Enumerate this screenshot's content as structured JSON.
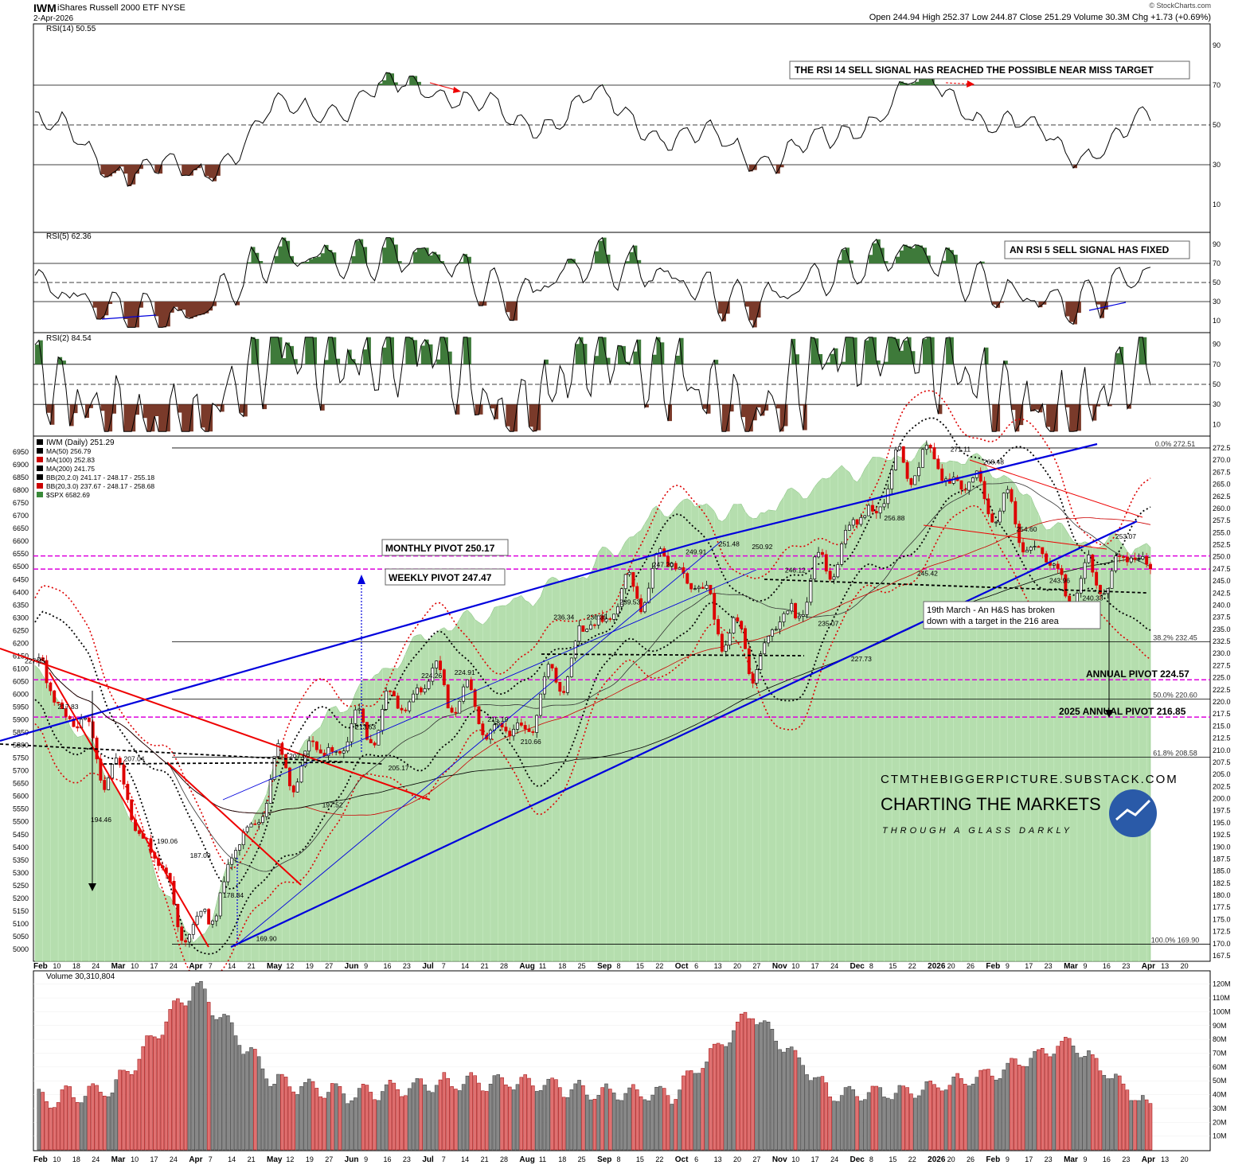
{
  "header": {
    "symbol": "IWM",
    "name": "iShares Russell 2000 ETF",
    "exchange": "NYSE",
    "date": "2-Apr-2026",
    "quote": "Open 244.94  High 252.37  Low 244.87  Close 251.29  Volume 30.3M  Chg +1.73 (+0.69%)",
    "credit": "© StockCharts.com"
  },
  "colors": {
    "up": "#000000",
    "down": "#dd0000",
    "overbought": "#3e7a3a",
    "oversold": "#7a3a2a",
    "spx_fill": "#a8d8a0",
    "pivot": "#dd00dd",
    "trend": "#0000dd",
    "red_trend": "#ee0000",
    "vol_up": "#888888",
    "vol_down": "#e07070"
  },
  "panels": {
    "rsi14": {
      "title": "RSI(14) 50.55",
      "ticks": [
        "90",
        "70",
        "50",
        "30",
        "10"
      ],
      "note": "THE RSI 14 SELL SIGNAL HAS REACHED THE POSSIBLE NEAR MISS TARGET"
    },
    "rsi5": {
      "title": "RSI(5) 62.36",
      "ticks": [
        "90",
        "70",
        "50",
        "30",
        "10"
      ],
      "note": "AN RSI 5 SELL SIGNAL HAS FIXED"
    },
    "rsi2": {
      "title": "RSI(2) 84.54",
      "ticks": [
        "90",
        "70",
        "50",
        "30",
        "10"
      ]
    },
    "main": {
      "legend": [
        "IWM (Daily) 251.29",
        "MA(50) 256.79",
        "MA(100) 252.83",
        "MA(200) 241.75",
        "BB(20,2.0) 241.17 - 248.17 - 255.18",
        "BB(20,3.0) 237.67 - 248.17 - 258.68",
        "$SPX 6582.69"
      ],
      "right_ticks": [
        "272.5",
        "270.0",
        "267.5",
        "265.0",
        "262.5",
        "260.0",
        "257.5",
        "255.0",
        "252.5",
        "250.0",
        "247.5",
        "245.0",
        "242.5",
        "240.0",
        "237.5",
        "235.0",
        "232.5",
        "230.0",
        "227.5",
        "225.0",
        "222.5",
        "220.0",
        "217.5",
        "215.0",
        "212.5",
        "210.0",
        "207.5",
        "205.0",
        "202.5",
        "200.0",
        "197.5",
        "195.0",
        "192.5",
        "190.0",
        "187.5",
        "185.0",
        "182.5",
        "180.0",
        "177.5",
        "175.0",
        "172.5",
        "170.0",
        "167.5"
      ],
      "left_ticks": [
        "6950",
        "6900",
        "6850",
        "6800",
        "6750",
        "6700",
        "6650",
        "6600",
        "6550",
        "6500",
        "6450",
        "6400",
        "6350",
        "6300",
        "6250",
        "6200",
        "6150",
        "6100",
        "6050",
        "6000",
        "5950",
        "5900",
        "5850",
        "5800",
        "5750",
        "5700",
        "5650",
        "5600",
        "5550",
        "5500",
        "5450",
        "5400",
        "5350",
        "5300",
        "5250",
        "5200",
        "5150",
        "5100",
        "5050",
        "5000"
      ],
      "fib_labels": [
        "0.0% 272.51",
        "38.2% 232.45",
        "50.0% 220.60",
        "61.8% 208.58",
        "100.0% 169.90"
      ],
      "boxes": {
        "monthly": "MONTHLY PIVOT 250.17",
        "weekly": "WEEKLY PIVOT 247.47",
        "hs": [
          "19th March - An H&S has broken",
          "down with a target in the 216 area"
        ],
        "annual": "ANNUAL PIVOT 224.57",
        "annual2025": "2025 ANNUAL PIVOT 216.85"
      },
      "price_labels": [
        "227.35",
        "217.83",
        "194.46",
        "207.04",
        "190.06",
        "187.09",
        "178.84",
        "169.90",
        "207.69",
        "197.52",
        "213.63",
        "205.17",
        "224.26",
        "224.91",
        "215.19",
        "210.66",
        "236.34",
        "236.35",
        "239.53",
        "247.20",
        "249.91",
        "251.48",
        "250.92",
        "246.12",
        "235.07",
        "227.73",
        "256.88",
        "245.42",
        "271.11",
        "268.48",
        "254.60",
        "243.96",
        "240.33",
        "253.07"
      ],
      "branding": {
        "site": "CTMTHEBIGGERPICTURE.SUBSTACK.COM",
        "title": "CHARTING THE MARKETS",
        "tag": "THROUGH A GLASS DARKLY"
      }
    },
    "volume": {
      "title": "Volume 30,310,804",
      "ticks": [
        "120M",
        "110M",
        "100M",
        "90M",
        "80M",
        "70M",
        "60M",
        "50M",
        "40M",
        "30M",
        "20M",
        "10M"
      ]
    }
  },
  "chart_data": [
    {
      "type": "line",
      "title": "RSI(14) 50.55",
      "ylim": [
        0,
        100
      ],
      "x": [
        "Feb",
        "Mar",
        "Apr",
        "May",
        "Jun",
        "Jul",
        "Aug",
        "Sep",
        "Oct",
        "Nov",
        "Dec",
        "2026",
        "Feb",
        "Mar",
        "Apr"
      ],
      "values": [
        52,
        30,
        24,
        55,
        62,
        72,
        50,
        62,
        45,
        35,
        40,
        72,
        55,
        36,
        50
      ]
    },
    {
      "type": "line",
      "title": "RSI(5) 62.36",
      "ylim": [
        0,
        100
      ],
      "x": [
        "Feb",
        "Mar",
        "Apr",
        "May",
        "Jun",
        "Jul",
        "Aug",
        "Sep",
        "Oct",
        "Nov",
        "Dec",
        "2026",
        "Feb",
        "Mar",
        "Apr"
      ],
      "values": [
        50,
        20,
        15,
        80,
        75,
        80,
        30,
        75,
        55,
        25,
        60,
        85,
        45,
        25,
        62
      ]
    },
    {
      "type": "line",
      "title": "RSI(2) 84.54",
      "ylim": [
        0,
        100
      ],
      "x": [
        "Feb",
        "Mar",
        "Apr",
        "May",
        "Jun",
        "Jul",
        "Aug",
        "Sep",
        "Oct",
        "Nov",
        "Dec",
        "2026",
        "Feb",
        "Mar",
        "Apr"
      ],
      "values": [
        60,
        10,
        5,
        90,
        70,
        90,
        5,
        90,
        60,
        10,
        85,
        90,
        40,
        10,
        85
      ]
    },
    {
      "type": "line",
      "title": "IWM (Daily) 251.29",
      "ylim": [
        167.5,
        272.5
      ],
      "x": [
        "Feb",
        "Mar",
        "Apr",
        "May",
        "Jun",
        "Jul",
        "Aug",
        "Sep",
        "Oct",
        "Nov",
        "Dec",
        "2026",
        "Feb",
        "Mar",
        "Apr"
      ],
      "series": [
        {
          "name": "IWM (Daily) 251.29",
          "values": [
            227,
            205,
            170,
            205,
            213,
            225,
            212,
            236,
            250,
            228,
            250,
            271,
            262,
            243,
            251
          ]
        },
        {
          "name": "$SPX 6582.69",
          "values": [
            6100,
            5650,
            5000,
            5700,
            6000,
            6250,
            6350,
            6500,
            6750,
            6700,
            6850,
            6950,
            6900,
            6600,
            6582
          ]
        }
      ]
    },
    {
      "type": "bar",
      "title": "Volume 30,310,804",
      "ylim": [
        0,
        125
      ],
      "unit": "M",
      "categories": [
        "Feb",
        "Mar",
        "Apr",
        "May",
        "Jun",
        "Jul",
        "Aug",
        "Sep",
        "Oct",
        "Nov",
        "Dec",
        "2026",
        "Feb",
        "Mar",
        "Apr"
      ],
      "values": [
        35,
        45,
        120,
        50,
        40,
        48,
        50,
        42,
        40,
        100,
        40,
        42,
        55,
        78,
        30
      ]
    }
  ],
  "x_axis": [
    "Feb",
    "10",
    "18",
    "24",
    "Mar",
    "10",
    "17",
    "24",
    "Apr",
    "7",
    "14",
    "21",
    "May",
    "12",
    "19",
    "27",
    "Jun",
    "9",
    "16",
    "23",
    "Jul",
    "7",
    "14",
    "21",
    "28",
    "Aug",
    "11",
    "18",
    "25",
    "Sep",
    "8",
    "15",
    "22",
    "Oct",
    "6",
    "13",
    "20",
    "27",
    "Nov",
    "10",
    "17",
    "24",
    "Dec",
    "8",
    "15",
    "22",
    "2026",
    "20",
    "26",
    "Feb",
    "9",
    "17",
    "23",
    "Mar",
    "9",
    "16",
    "23",
    "Apr",
    "13",
    "20"
  ]
}
